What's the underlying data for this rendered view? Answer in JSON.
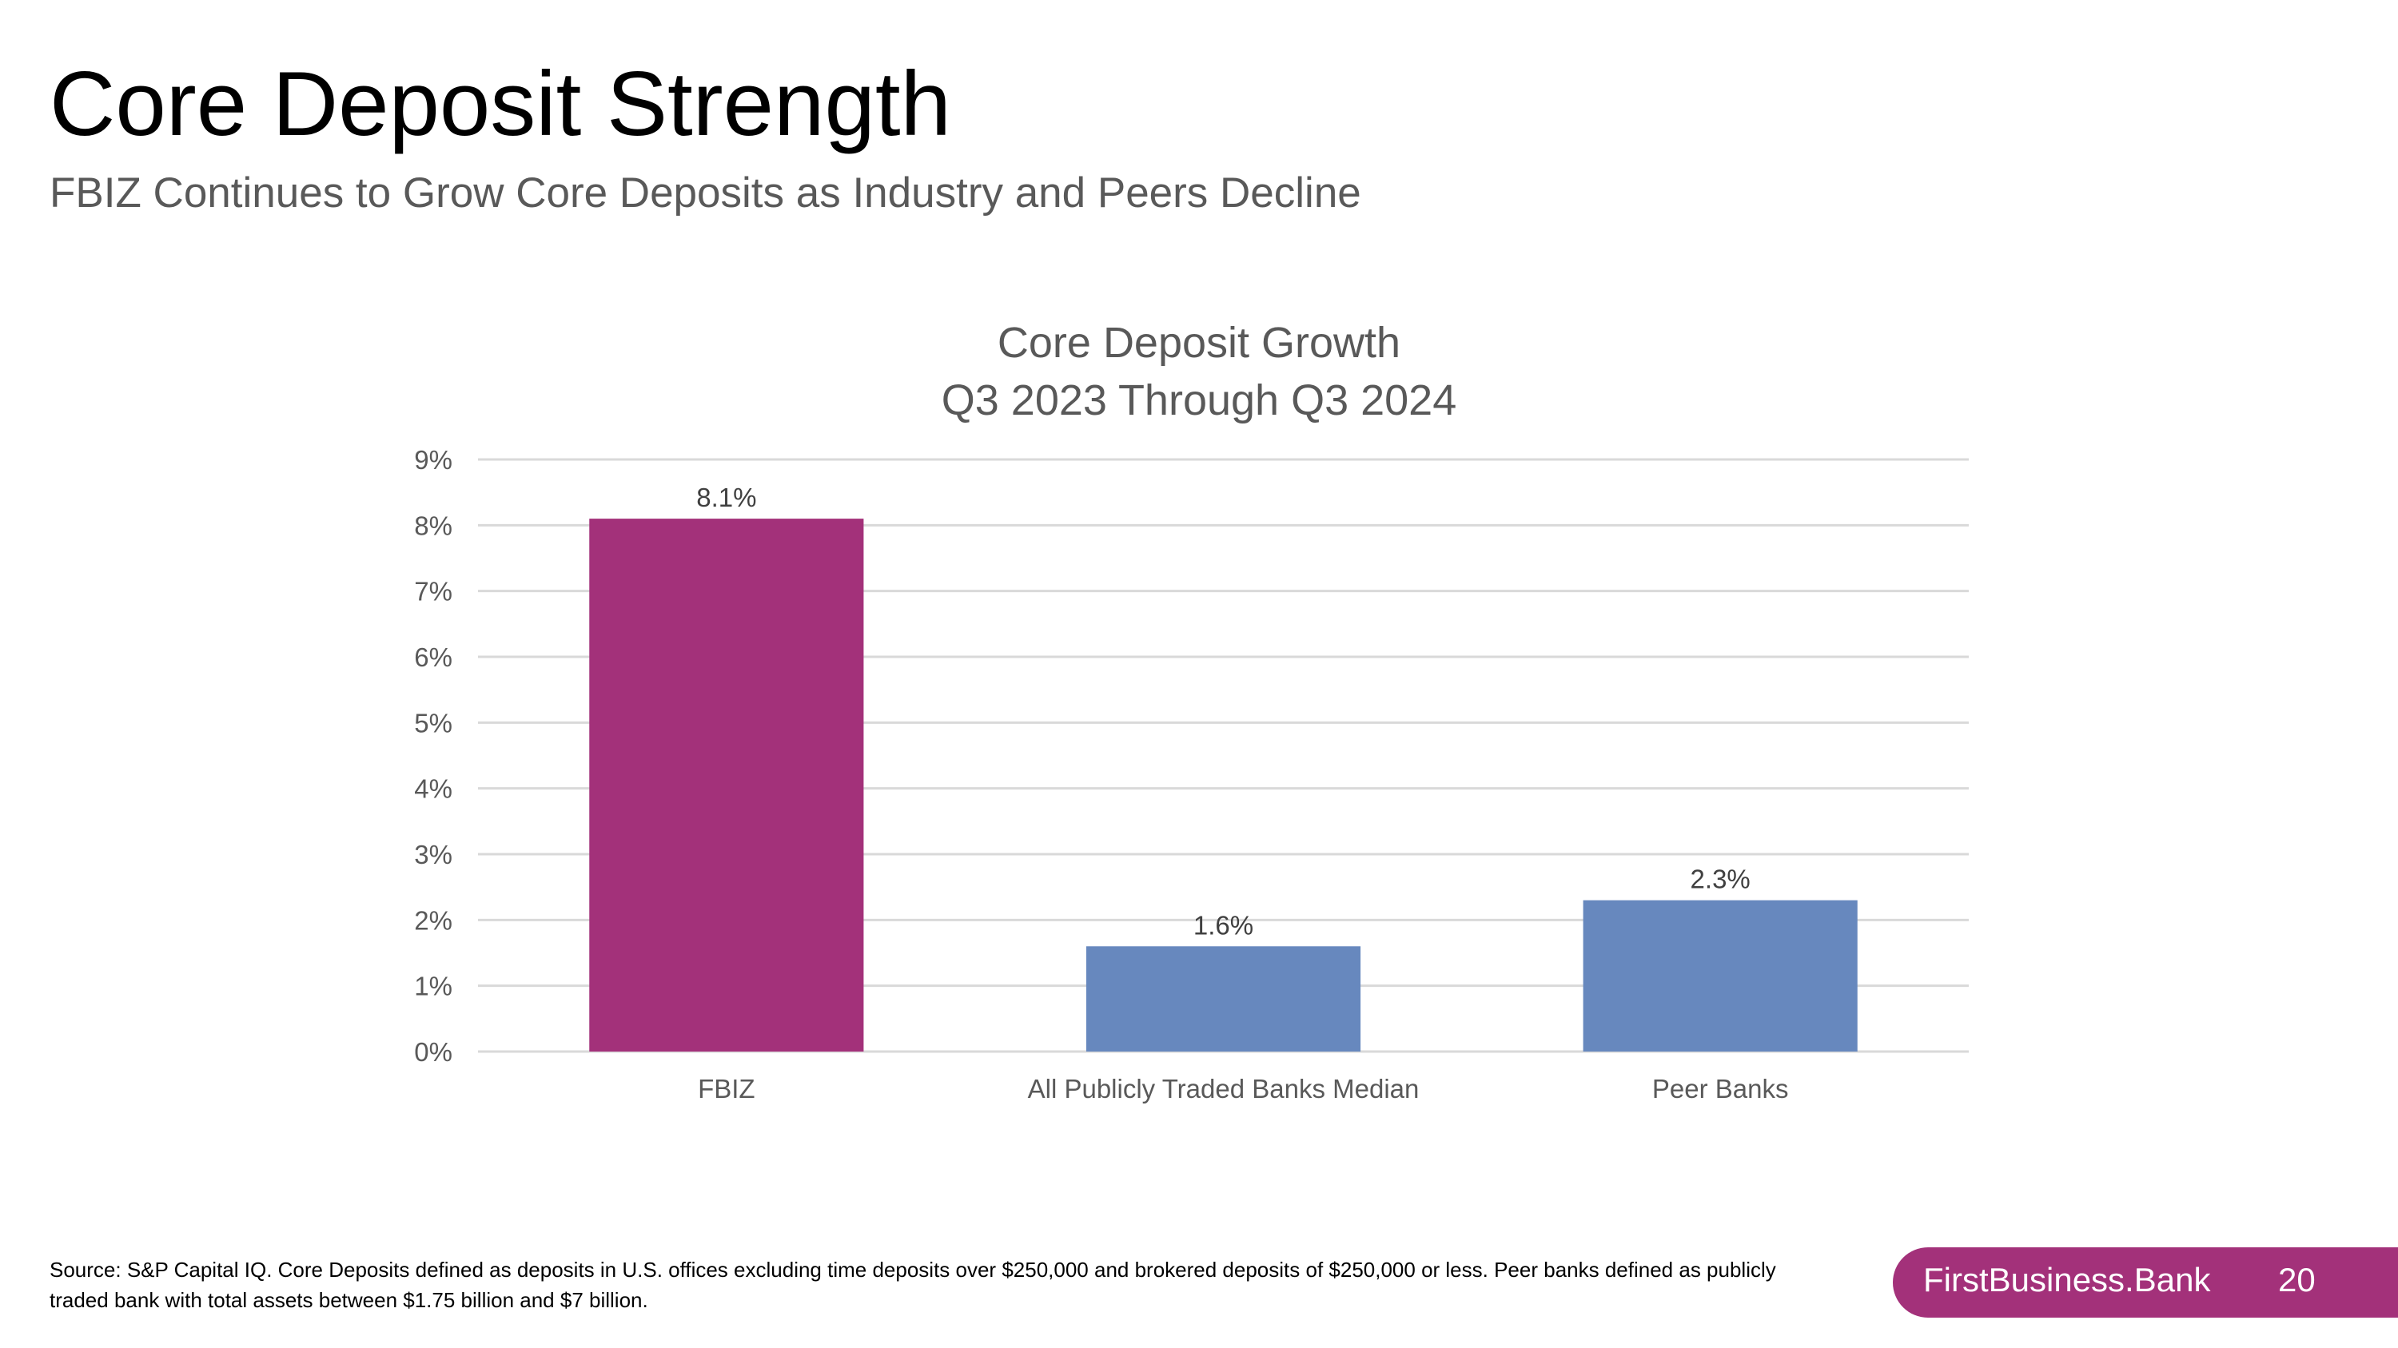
{
  "slide": {
    "title": "Core Deposit Strength",
    "subtitle": "FBIZ Continues to Grow Core Deposits as Industry and Peers Decline"
  },
  "chart_data": {
    "type": "bar",
    "title_lines": [
      "Core Deposit Growth",
      "Q3 2023 Through Q3 2024"
    ],
    "categories": [
      "FBIZ",
      "All Publicly Traded Banks Median",
      "Peer Banks"
    ],
    "values": [
      8.1,
      1.6,
      2.3
    ],
    "value_labels": [
      "8.1%",
      "1.6%",
      "2.3%"
    ],
    "bar_colors": [
      "#a3317a",
      "#6788be",
      "#6788be"
    ],
    "ylim": [
      0,
      9
    ],
    "yticks": [
      0,
      1,
      2,
      3,
      4,
      5,
      6,
      7,
      8,
      9
    ],
    "ytick_labels": [
      "0%",
      "1%",
      "2%",
      "3%",
      "4%",
      "5%",
      "6%",
      "7%",
      "8%",
      "9%"
    ],
    "xlabel": "",
    "ylabel": "",
    "grid": true
  },
  "footnote": "Source: S&P Capital IQ. Core Deposits defined as deposits in U.S. offices excluding time deposits over $250,000 and brokered deposits of $250,000 or less. Peer banks defined as publicly traded bank with total assets between $1.75 billion and $7 billion.",
  "footer": {
    "brand": "FirstBusiness.Bank",
    "page_number": "20",
    "brand_color": "#a3317a"
  }
}
